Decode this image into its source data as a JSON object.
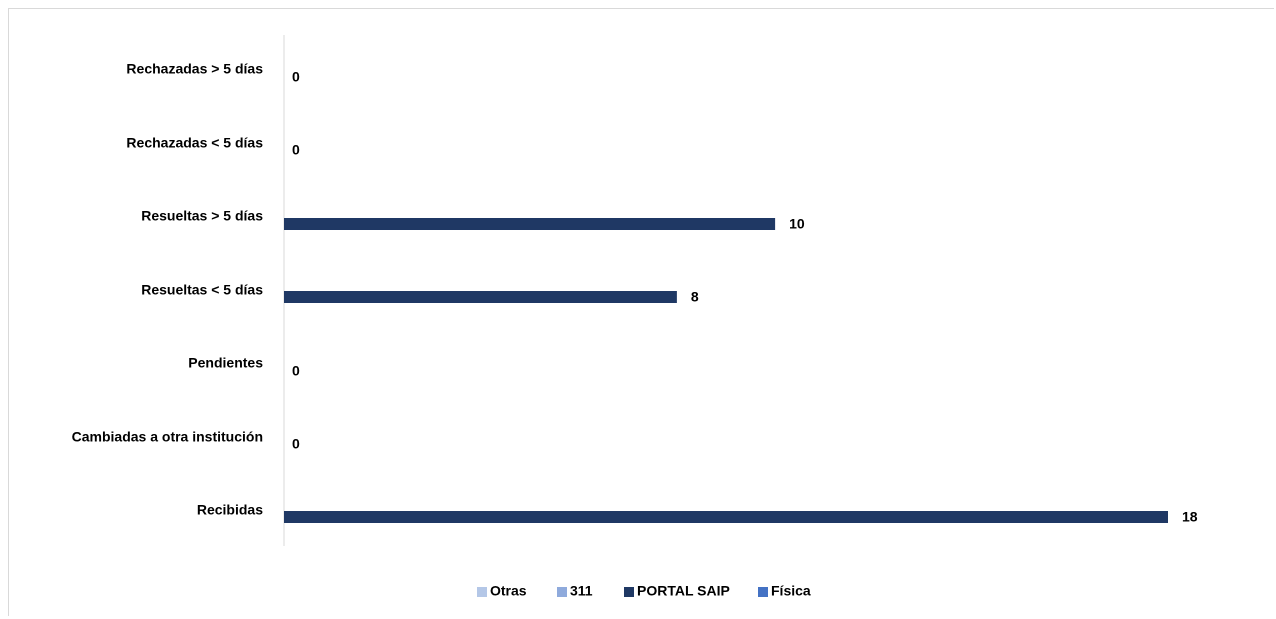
{
  "chart_data": {
    "type": "bar",
    "orientation": "horizontal",
    "categories": [
      "Rechazadas  > 5 días",
      "Rechazadas  < 5 días",
      "Resueltas > 5 días",
      "Resueltas < 5 días",
      "Pendientes",
      "Cambiadas a otra institución",
      "Recibidas"
    ],
    "series": [
      {
        "name": "Otras",
        "color": "#b4c7e7",
        "values": [
          0,
          0,
          0,
          0,
          0,
          0,
          0
        ]
      },
      {
        "name": "311",
        "color": "#8faadc",
        "values": [
          0,
          0,
          0,
          0,
          0,
          0,
          0
        ]
      },
      {
        "name": "PORTAL SAIP",
        "color": "#1f3864",
        "values": [
          0,
          0,
          10,
          8,
          0,
          0,
          18
        ]
      },
      {
        "name": "Física",
        "color": "#4472c4",
        "values": [
          0,
          0,
          0,
          0,
          0,
          0,
          0
        ]
      }
    ],
    "data_labels": [
      "0",
      "0",
      "10",
      "8",
      "0",
      "0",
      "18"
    ],
    "xlim": [
      0,
      18
    ],
    "grid": false,
    "legend_position": "bottom"
  }
}
